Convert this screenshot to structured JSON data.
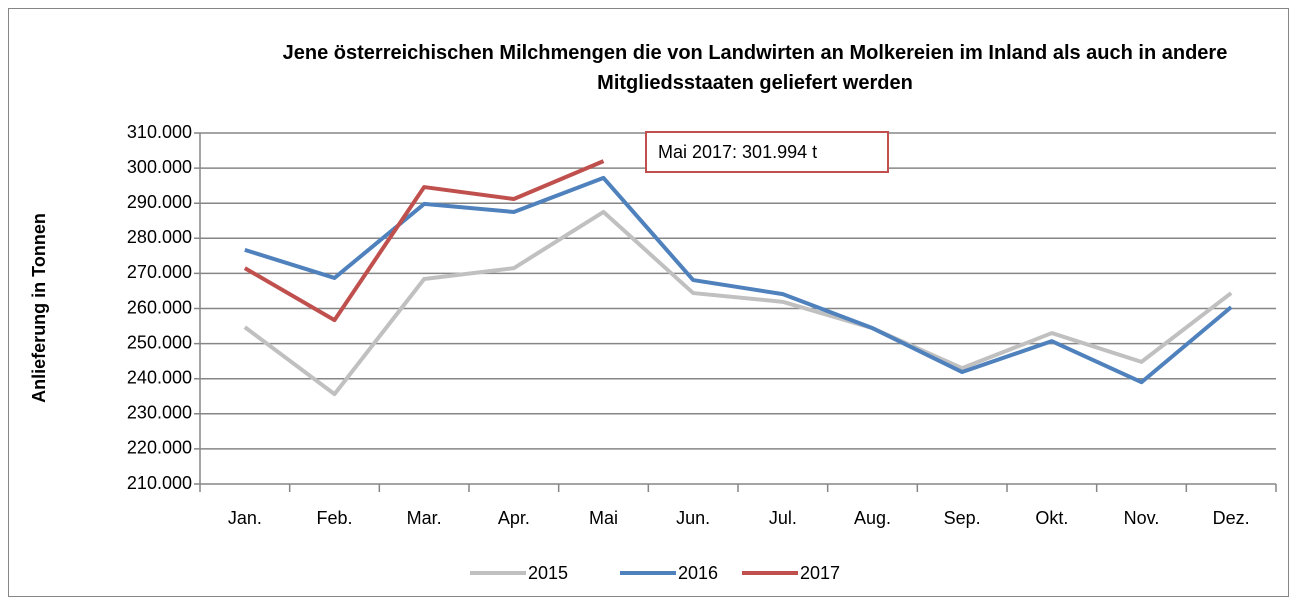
{
  "chart_data": {
    "type": "line",
    "title": "Jene österreichischen Milchmengen die von Landwirten an Molkereien im Inland als auch in andere Mitgliedsstaaten geliefert werden",
    "y_label": "Anlieferung in Tonnen",
    "annotation": "Mai 2017: 301.994 t",
    "categories": [
      "Jan.",
      "Feb.",
      "Mar.",
      "Apr.",
      "Mai",
      "Jun.",
      "Jul.",
      "Aug.",
      "Sep.",
      "Okt.",
      "Nov.",
      "Dez."
    ],
    "series": [
      {
        "name": "2015",
        "color": "#c0c0c0",
        "values": [
          254700,
          235600,
          268400,
          271500,
          287500,
          264400,
          261900,
          254400,
          243000,
          253000,
          244800,
          264400
        ]
      },
      {
        "name": "2016",
        "color": "#4f81bd",
        "values": [
          276700,
          268700,
          289800,
          287500,
          297200,
          268100,
          264100,
          254400,
          241900,
          250700,
          239000,
          260400
        ]
      },
      {
        "name": "2017",
        "color": "#c0504d",
        "values": [
          271500,
          256700,
          294600,
          291200,
          301994,
          null,
          null,
          null,
          null,
          null,
          null,
          null
        ]
      }
    ],
    "ylim": [
      210000,
      310000
    ],
    "yticks": [
      {
        "value": 210000,
        "label": "210.000"
      },
      {
        "value": 220000,
        "label": "220.000"
      },
      {
        "value": 230000,
        "label": "230.000"
      },
      {
        "value": 240000,
        "label": "240.000"
      },
      {
        "value": 250000,
        "label": "250.000"
      },
      {
        "value": 260000,
        "label": "260.000"
      },
      {
        "value": 270000,
        "label": "270.000"
      },
      {
        "value": 280000,
        "label": "280.000"
      },
      {
        "value": 290000,
        "label": "290.000"
      },
      {
        "value": 300000,
        "label": "300.000"
      },
      {
        "value": 310000,
        "label": "310.000"
      }
    ],
    "grid": true,
    "legend": "bottom"
  }
}
